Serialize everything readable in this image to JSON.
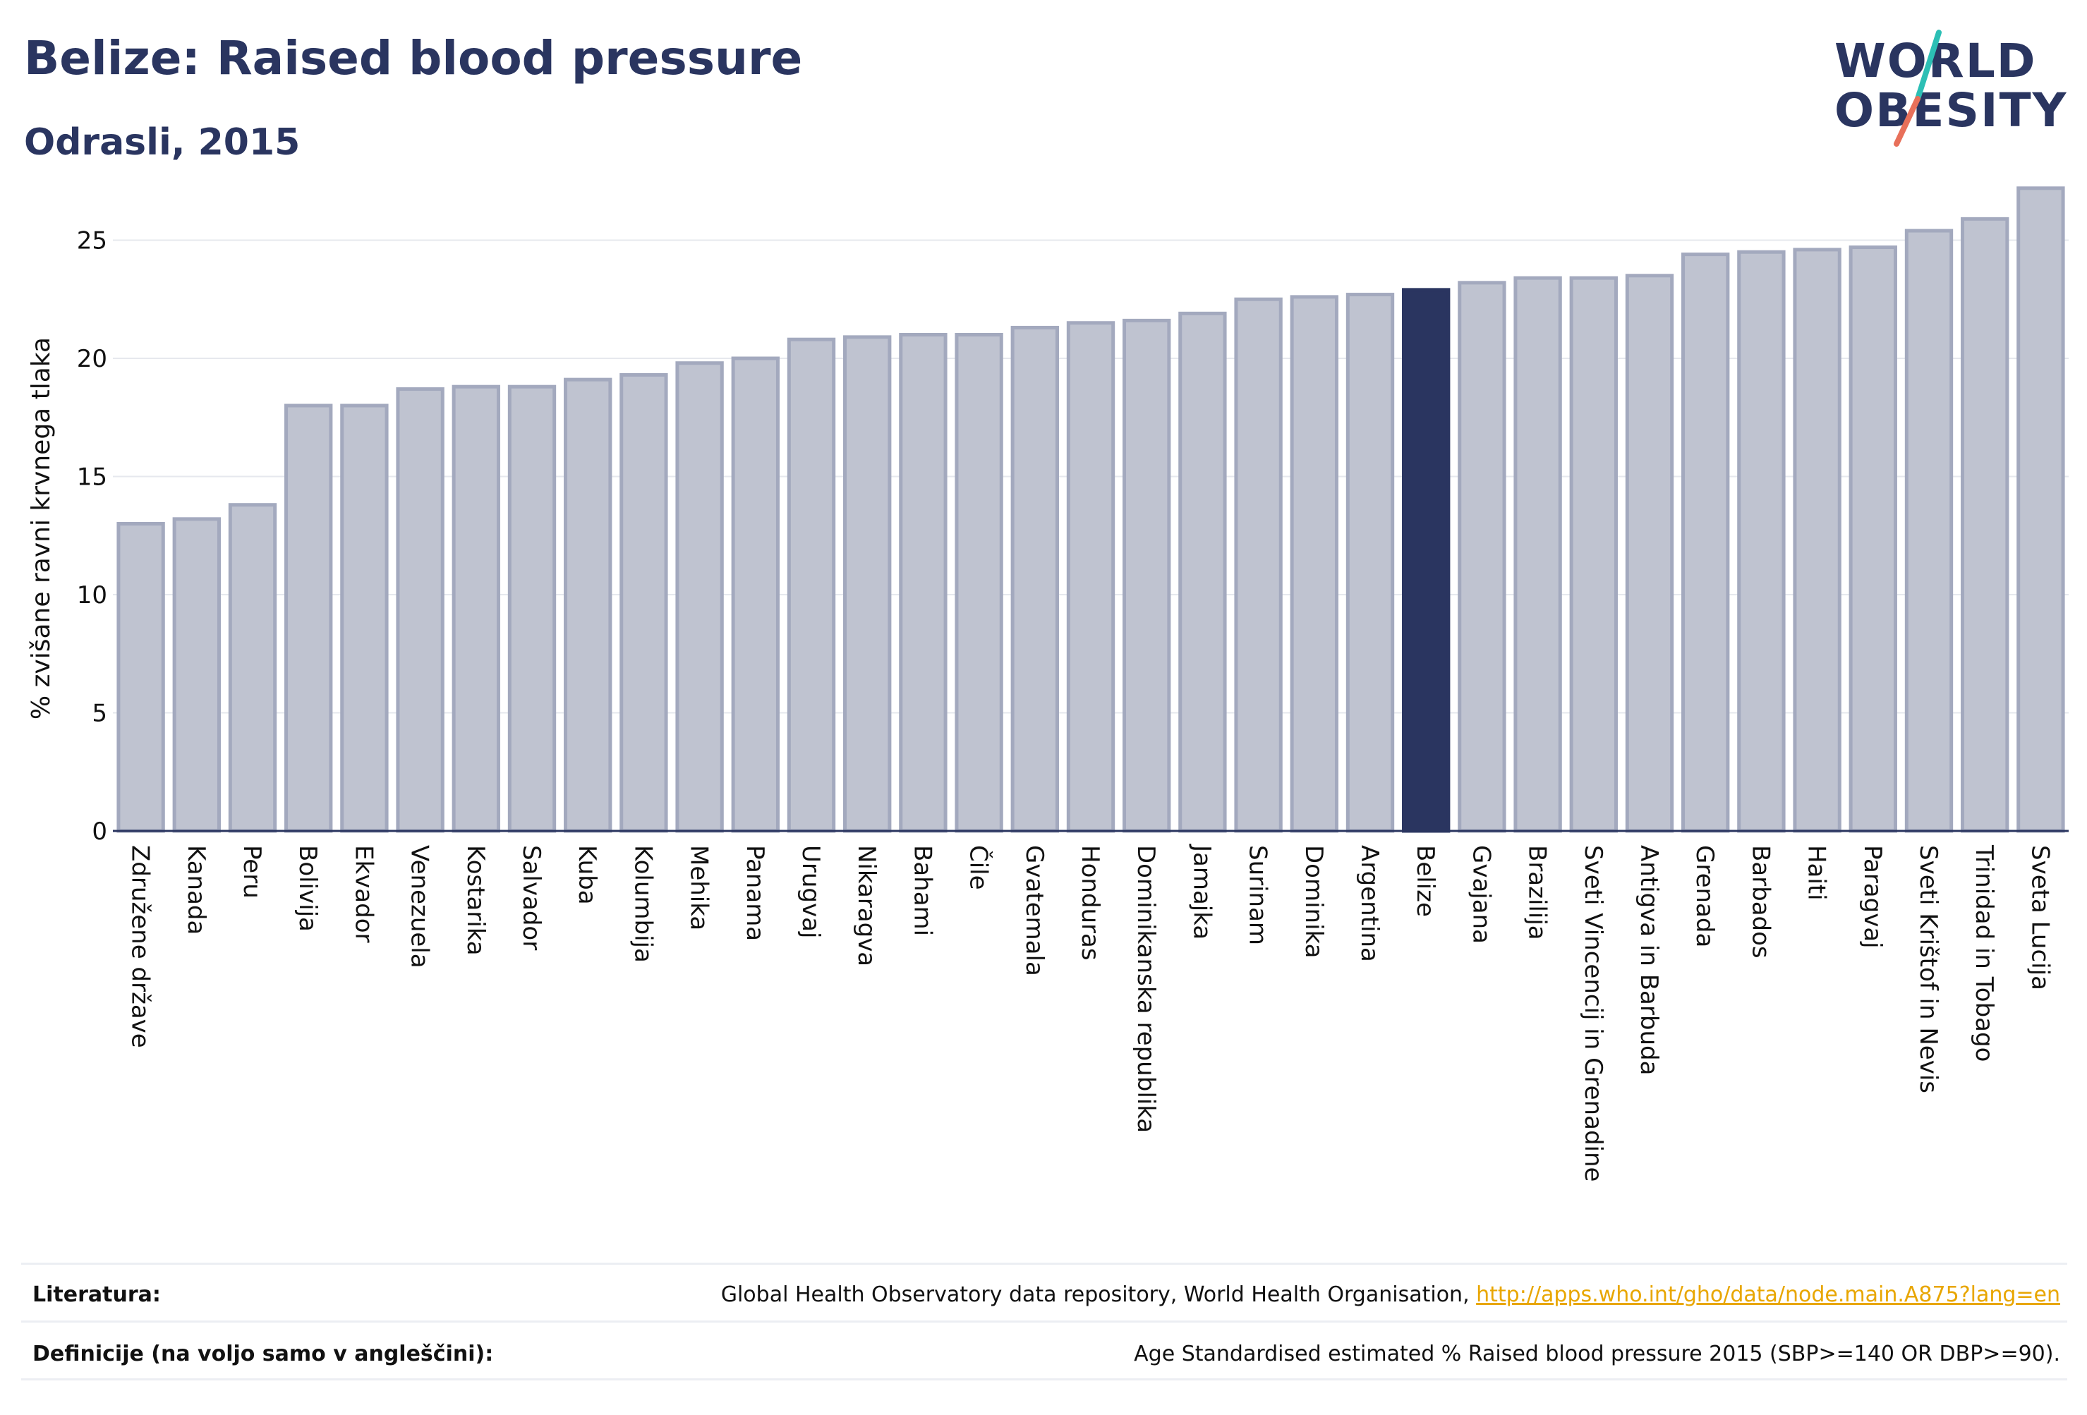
{
  "header": {
    "title": "Belize: Raised blood pressure",
    "subtitle": "Odrasli, 2015"
  },
  "logo": {
    "line1": "WORLD",
    "line2": "OBESITY",
    "slash_colors": [
      "#2cbfb5",
      "#e8705a"
    ]
  },
  "colors": {
    "bar": "#bfc3d0",
    "bar_border": "#a3a9be",
    "highlight": "#2a3560",
    "grid": "#e6e8ee",
    "axis": "#2a3560"
  },
  "chart_data": {
    "type": "bar",
    "ylabel": "% zvišane ravni krvnega tlaka",
    "ylim": [
      0,
      28
    ],
    "yticks": [
      0,
      5,
      10,
      15,
      20,
      25
    ],
    "grid": true,
    "highlight": "Belize",
    "categories": [
      "Združene države",
      "Kanada",
      "Peru",
      "Bolivija",
      "Ekvador",
      "Venezuela",
      "Kostarika",
      "Salvador",
      "Kuba",
      "Kolumbija",
      "Mehika",
      "Panama",
      "Urugvaj",
      "Nikaragva",
      "Bahami",
      "Čile",
      "Gvatemala",
      "Honduras",
      "Dominikanska republika",
      "Jamajka",
      "Surinam",
      "Dominika",
      "Argentina",
      "Belize",
      "Gvajana",
      "Brazilija",
      "Sveti Vincencij in Grenadine",
      "Antigva in Barbuda",
      "Grenada",
      "Barbados",
      "Haiti",
      "Paragvaj",
      "Sveti Krištof in Nevis",
      "Trinidad in Tobago",
      "Sveta Lucija"
    ],
    "values": [
      13.0,
      13.2,
      13.8,
      18.0,
      18.0,
      18.7,
      18.8,
      18.8,
      19.1,
      19.3,
      19.8,
      20.0,
      20.8,
      20.9,
      21.0,
      21.0,
      21.3,
      21.5,
      21.6,
      21.9,
      22.5,
      22.6,
      22.7,
      22.9,
      23.2,
      23.4,
      23.4,
      23.5,
      24.4,
      24.5,
      24.6,
      24.7,
      25.4,
      25.9,
      27.2
    ]
  },
  "footer": {
    "sources_label": "Literatura:",
    "sources_text": "Global Health Observatory data repository, World Health Organisation, ",
    "sources_link": "http://apps.who.int/gho/data/node.main.A875?lang=en",
    "definitions_label": "Definicije (na voljo samo v angleščini):",
    "definitions_text": "Age Standardised estimated % Raised blood pressure 2015 (SBP>=140 OR DBP>=90)."
  }
}
